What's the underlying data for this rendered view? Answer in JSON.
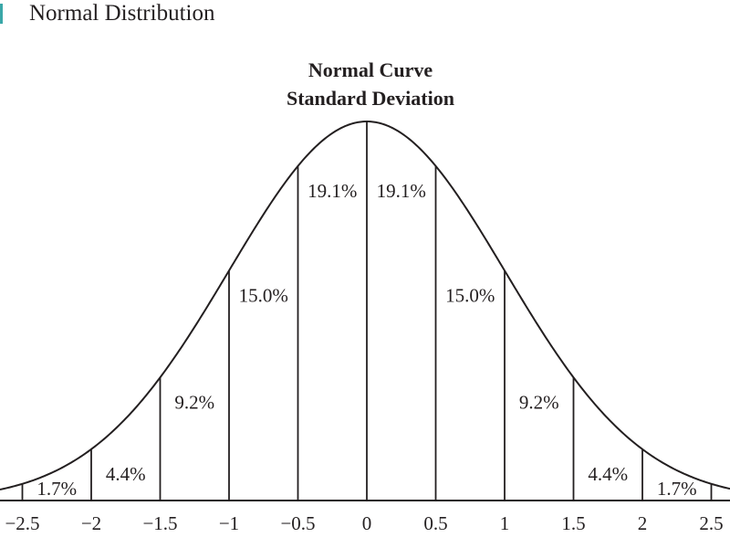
{
  "header": {
    "title": "Normal Distribution",
    "accent_color": "#3aa7a8"
  },
  "chart_data": {
    "type": "area",
    "title_lines": [
      "Normal Curve",
      "Standard Deviation"
    ],
    "xlabel": "",
    "ylabel": "",
    "xlim": [
      -2.5,
      2.5
    ],
    "grid": false,
    "legend": "none",
    "x_ticks": [
      -2.5,
      -2,
      -1.5,
      -1,
      -0.5,
      0,
      0.5,
      1,
      1.5,
      2,
      2.5
    ],
    "x_tick_labels": [
      "−2.5",
      "−2",
      "−1.5",
      "−1",
      "−0.5",
      "0",
      "0.5",
      "1",
      "1.5",
      "2",
      "2.5"
    ],
    "boundaries": [
      -2.5,
      -2,
      -1.5,
      -1,
      -0.5,
      0,
      0.5,
      1,
      1.5,
      2,
      2.5
    ],
    "segments": [
      {
        "from": -2.5,
        "to": -2,
        "value": 1.7,
        "label": "1.7%"
      },
      {
        "from": -2,
        "to": -1.5,
        "value": 4.4,
        "label": "4.4%"
      },
      {
        "from": -1.5,
        "to": -1,
        "value": 9.2,
        "label": "9.2%"
      },
      {
        "from": -1,
        "to": -0.5,
        "value": 15.0,
        "label": "15.0%"
      },
      {
        "from": -0.5,
        "to": 0,
        "value": 19.1,
        "label": "19.1%"
      },
      {
        "from": 0,
        "to": 0.5,
        "value": 19.1,
        "label": "19.1%"
      },
      {
        "from": 0.5,
        "to": 1,
        "value": 15.0,
        "label": "15.0%"
      },
      {
        "from": 1,
        "to": 1.5,
        "value": 9.2,
        "label": "9.2%"
      },
      {
        "from": 1.5,
        "to": 2,
        "value": 4.4,
        "label": "4.4%"
      },
      {
        "from": 2,
        "to": 2.5,
        "value": 1.7,
        "label": "1.7%"
      }
    ],
    "line_color": "#231f20"
  }
}
